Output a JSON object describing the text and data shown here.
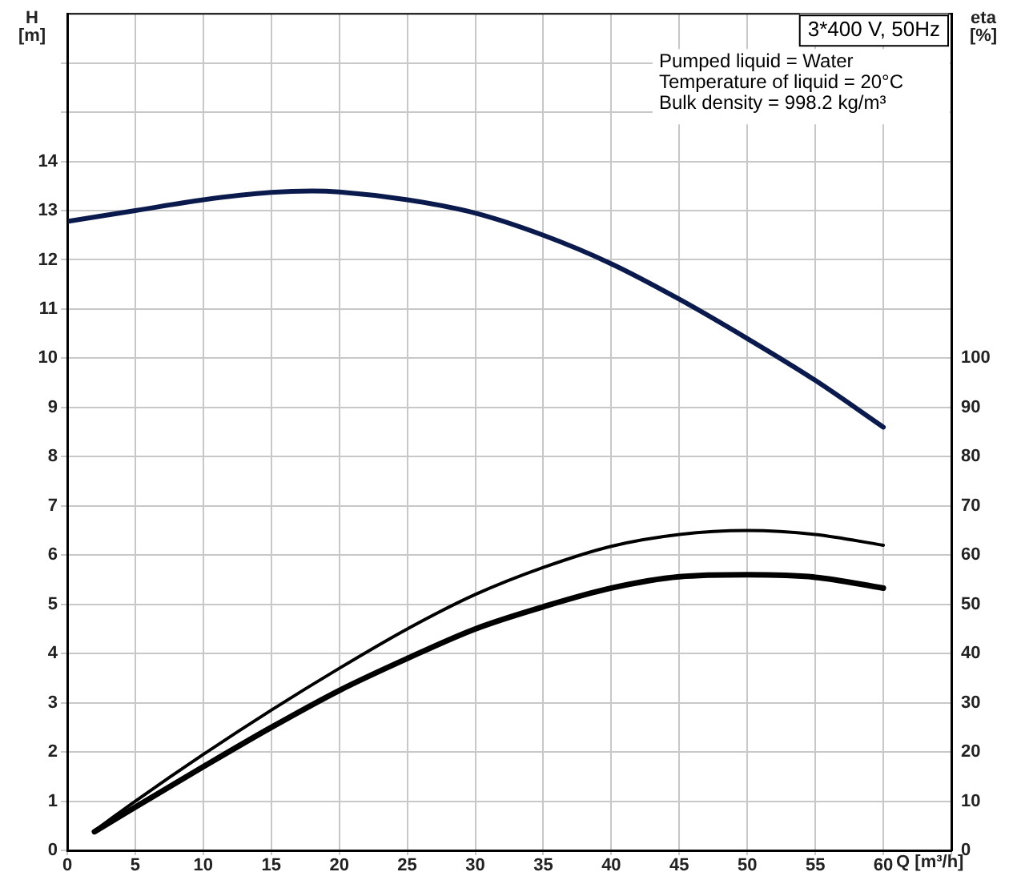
{
  "chart_data": {
    "type": "line",
    "title": "3*400 V, 50Hz",
    "annotations": [
      "Pumped liquid = Water",
      "Temperature of liquid = 20°C",
      "Bulk density = 998.2 kg/m³"
    ],
    "xlabel": "Q [m³/h]",
    "ylabel": "H [m]",
    "y2label": "eta [%]",
    "series": [
      {
        "color": "#0b1a4d",
        "x": [
          0,
          5,
          10,
          15,
          18,
          20,
          25,
          30,
          35,
          40,
          45,
          50,
          55,
          60
        ],
        "values": [
          12.78,
          13.0,
          13.22,
          13.37,
          13.4,
          13.38,
          13.22,
          12.95,
          12.5,
          11.92,
          11.2,
          10.4,
          9.55,
          8.6
        ]
      },
      {
        "color": "#000000",
        "axis": "y2",
        "x": [
          2,
          5,
          10,
          15,
          20,
          25,
          30,
          35,
          40,
          45,
          50,
          55,
          60
        ],
        "values": [
          4,
          10,
          19.5,
          28.5,
          37,
          45,
          52,
          57.5,
          61.8,
          64.2,
          65,
          64.2,
          62
        ]
      },
      {
        "color": "#000000",
        "axis": "y2",
        "x": [
          2,
          5,
          10,
          15,
          20,
          25,
          30,
          35,
          40,
          45,
          50,
          55,
          60
        ],
        "values": [
          3.8,
          8.8,
          17,
          25,
          32.5,
          39,
          45,
          49.5,
          53.3,
          55.6,
          56,
          55.5,
          53.3
        ]
      }
    ],
    "xlim": [
      0,
      65
    ],
    "xticks": [
      0,
      5,
      10,
      15,
      20,
      25,
      30,
      35,
      40,
      45,
      50,
      55,
      60,
      {
        "value": 65,
        "label": null
      }
    ],
    "ylim": [
      0,
      17
    ],
    "yticks": [
      0,
      1,
      2,
      3,
      4,
      5,
      6,
      7,
      8,
      9,
      10,
      11,
      12,
      13,
      14,
      {
        "value": 15,
        "label": null
      },
      {
        "value": 16,
        "label": null
      }
    ],
    "y2lim": [
      0,
      170
    ],
    "y2ticks": [
      0,
      10,
      20,
      30,
      40,
      50,
      60,
      70,
      80,
      90,
      100
    ],
    "grid": true,
    "legend": false,
    "marker": "none",
    "line_style": "solid"
  }
}
